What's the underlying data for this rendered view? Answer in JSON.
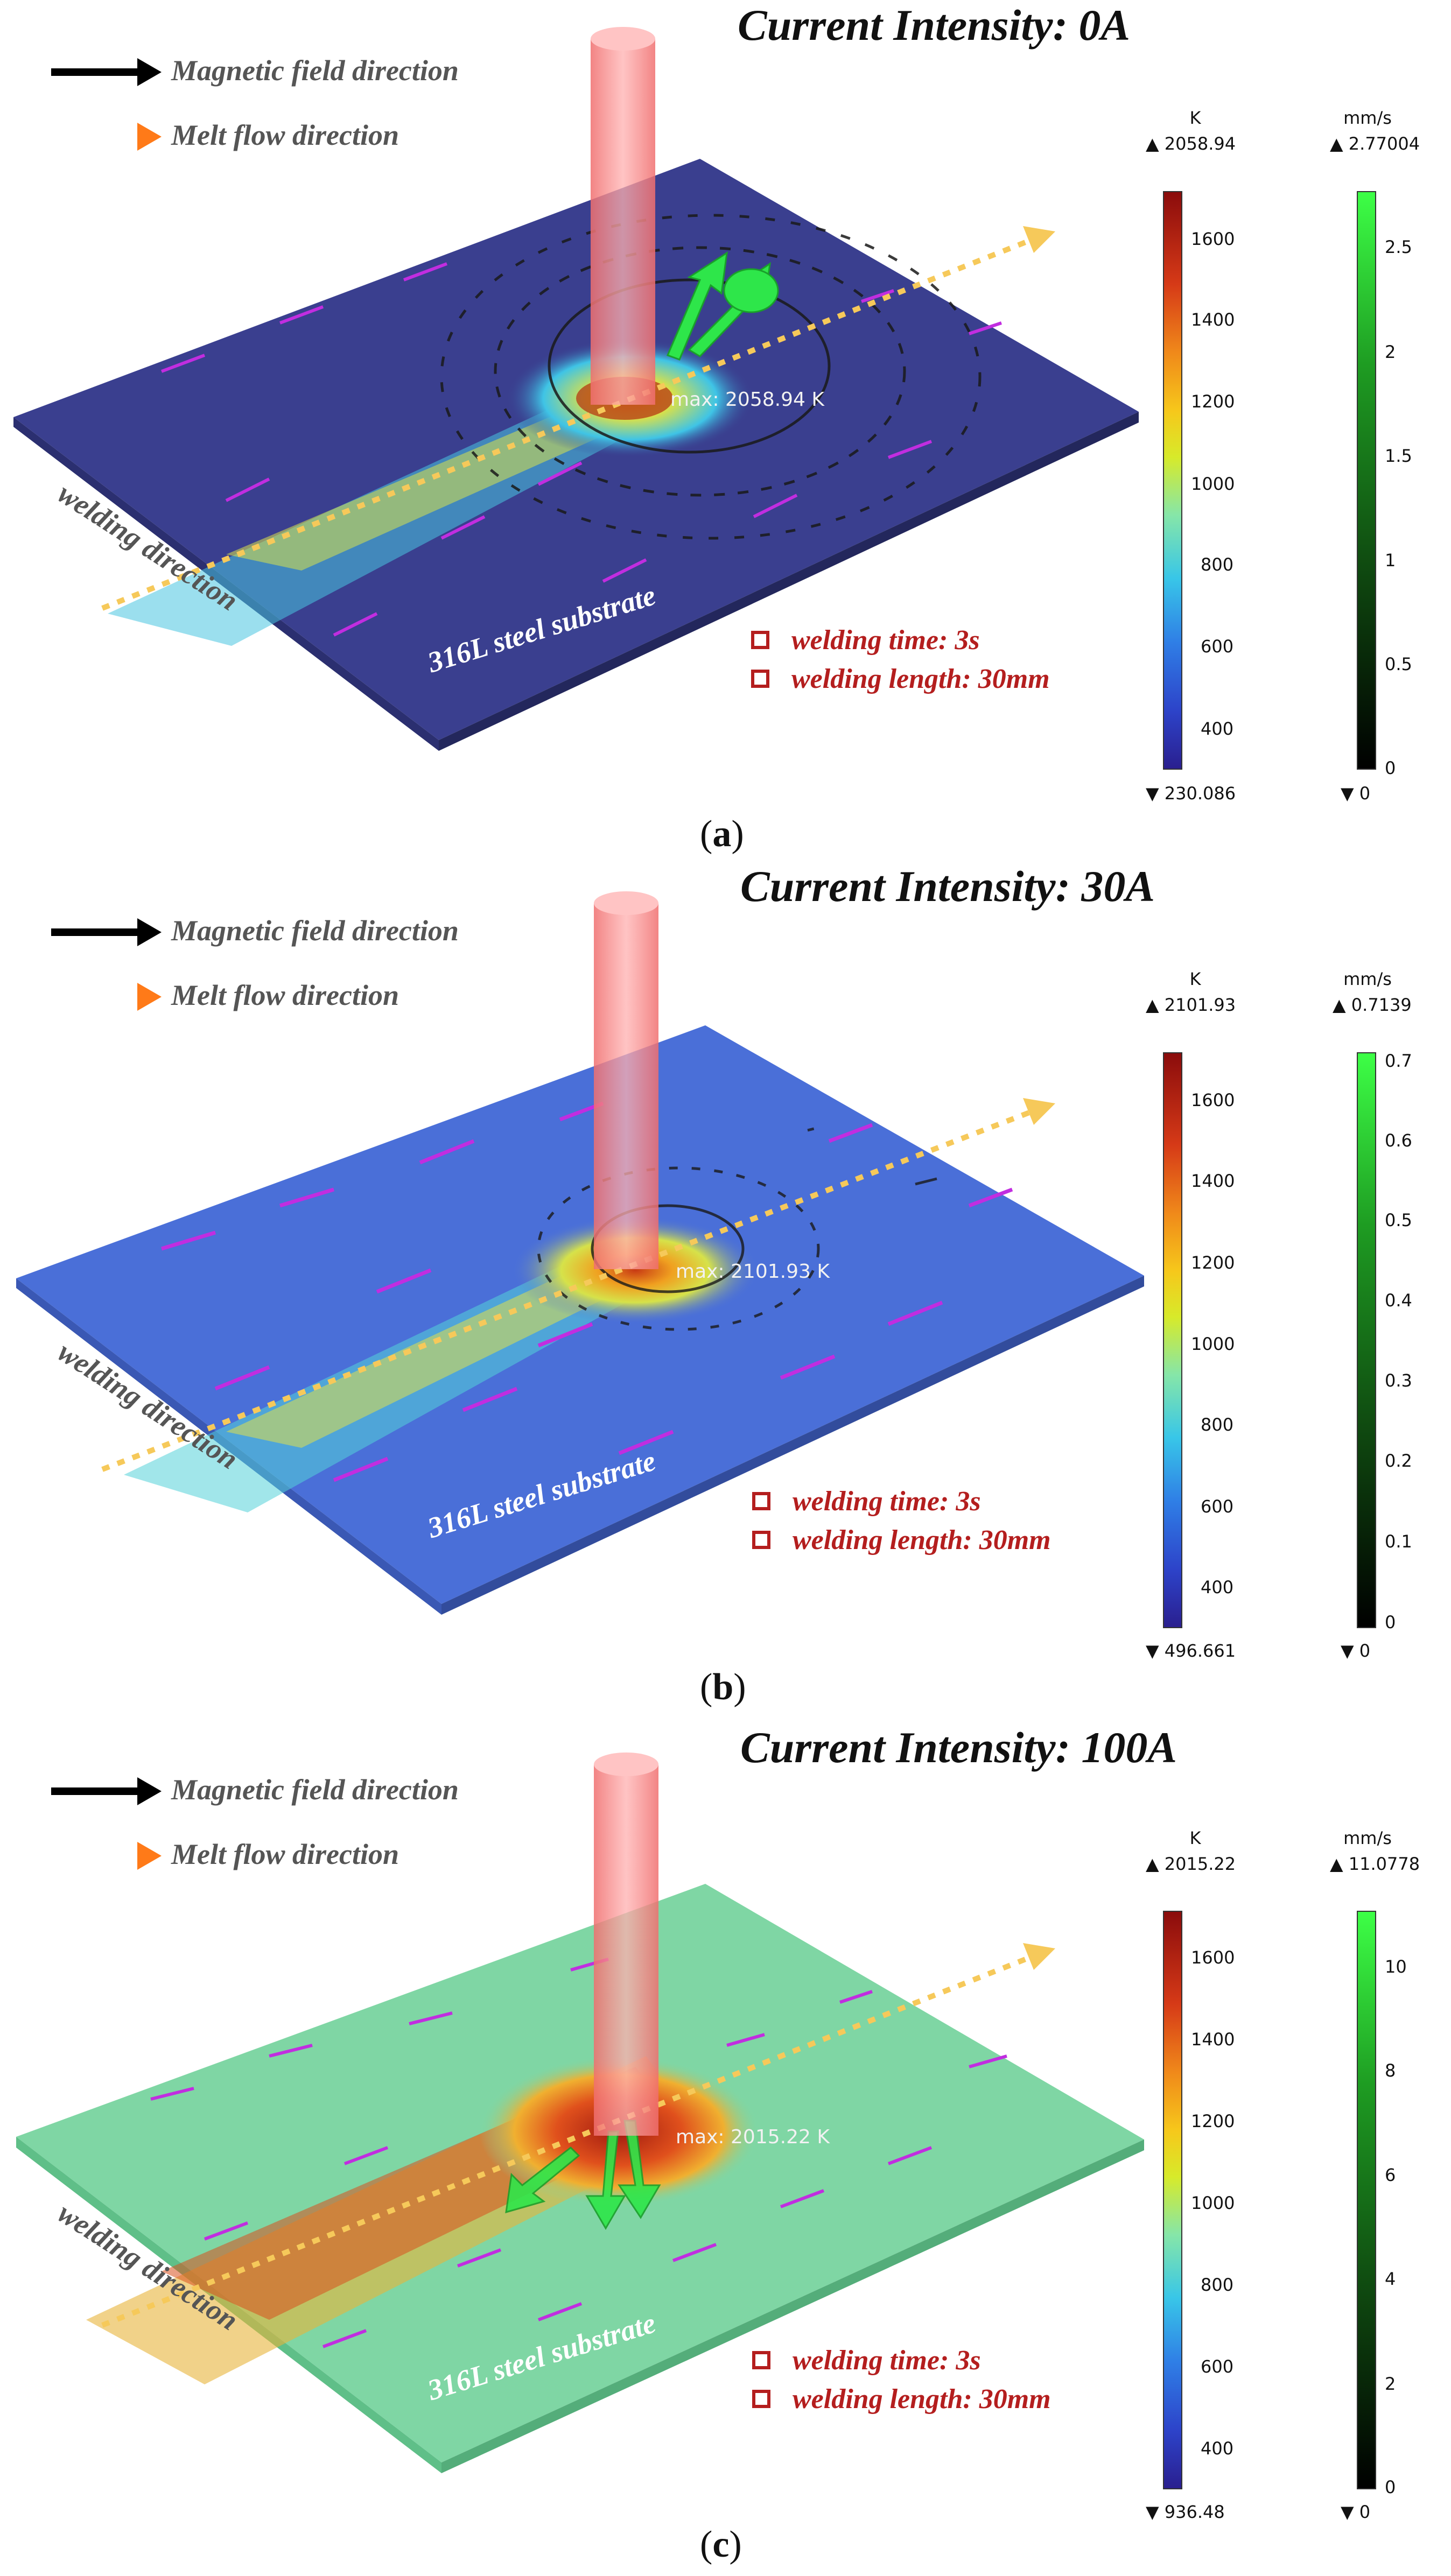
{
  "legend": {
    "magnetic_label": "Magnetic field direction",
    "melt_label": "Melt flow direction"
  },
  "panels": [
    {
      "title": "Current Intensity: 0A",
      "caption_letter": "a",
      "substrate_label": "316L steel substrate",
      "welding_direction_label": "welding direction",
      "max_label": "max: 2058.94 K",
      "info": [
        "welding time: 3s",
        "welding length: 30mm"
      ],
      "temp_scale": {
        "unit": "K",
        "max": "2058.94",
        "min": "230.086",
        "ticks": [
          "1600",
          "1400",
          "1200",
          "1000",
          "800",
          "600",
          "400"
        ]
      },
      "vel_scale": {
        "unit": "mm/s",
        "max": "2.77004",
        "min": "0",
        "ticks": [
          "2.5",
          "2",
          "1.5",
          "1",
          "0.5",
          "0"
        ]
      },
      "plate_color": "#3a3f8f"
    },
    {
      "title": "Current Intensity: 30A",
      "caption_letter": "b",
      "substrate_label": "316L steel substrate",
      "welding_direction_label": "welding direction",
      "max_label": "max: 2101.93 K",
      "info": [
        "welding time: 3s",
        "welding length: 30mm"
      ],
      "temp_scale": {
        "unit": "K",
        "max": "2101.93",
        "min": "496.661",
        "ticks": [
          "1600",
          "1400",
          "1200",
          "1000",
          "800",
          "600",
          "400"
        ]
      },
      "vel_scale": {
        "unit": "mm/s",
        "max": "0.7139",
        "min": "0",
        "ticks": [
          "0.7",
          "0.6",
          "0.5",
          "0.4",
          "0.3",
          "0.2",
          "0.1",
          "0"
        ]
      },
      "plate_color": "#4a6fd8"
    },
    {
      "title": "Current Intensity: 100A",
      "caption_letter": "c",
      "substrate_label": "316L steel substrate",
      "welding_direction_label": "welding direction",
      "max_label": "max: 2015.22 K",
      "info": [
        "welding time: 3s",
        "welding length: 30mm"
      ],
      "temp_scale": {
        "unit": "K",
        "max": "2015.22",
        "min": "936.48",
        "ticks": [
          "1600",
          "1400",
          "1200",
          "1000",
          "800",
          "600",
          "400"
        ]
      },
      "vel_scale": {
        "unit": "mm/s",
        "max": "11.0778",
        "min": "0",
        "ticks": [
          "10",
          "8",
          "6",
          "4",
          "2",
          "0"
        ]
      },
      "plate_color": "#7fd6a4"
    }
  ],
  "colors": {
    "title": "#111111",
    "legend_text": "#555555",
    "info_text": "#b41e1e",
    "laser": "#f48a8a",
    "weld_path": "#f6c95a",
    "flow_arrow": "#c12de0",
    "vel_arrow": "#2ee64a"
  }
}
